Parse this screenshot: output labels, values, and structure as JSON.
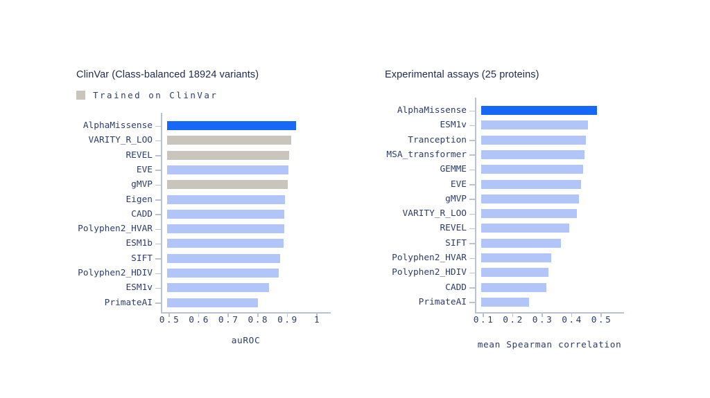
{
  "colors": {
    "highlight": "#1768f5",
    "default": "#b1c5f9",
    "trained": "#c9c5bc",
    "axis": "#b9c1d4",
    "text": "#2d3c6b",
    "title": "#202b52",
    "background": "#ffffff"
  },
  "chart_data": [
    {
      "type": "bar",
      "orientation": "horizontal",
      "title": "ClinVar (Class-balanced 18924 variants)",
      "xlabel": "auROC",
      "xticks": [
        0.5,
        0.6,
        0.7,
        0.8,
        0.9,
        1
      ],
      "xtick_labels": [
        "0.5",
        "0.6",
        "0.7",
        "0.8",
        "0.9",
        "1"
      ],
      "xlim": [
        0.49,
        1.05
      ],
      "grid": false,
      "legend_position": "top-left",
      "legend": [
        {
          "label": "Trained on ClinVar",
          "color_key": "trained"
        }
      ],
      "categories": [
        "AlphaMissense",
        "VARITY_R_LOO",
        "REVEL",
        "EVE",
        "gMVP",
        "Eigen",
        "CADD",
        "Polyphen2_HVAR",
        "ESM1b",
        "SIFT",
        "Polyphen2_HDIV",
        "ESM1v",
        "PrimateAI"
      ],
      "values": [
        0.929,
        0.912,
        0.907,
        0.904,
        0.902,
        0.893,
        0.89,
        0.889,
        0.887,
        0.875,
        0.87,
        0.839,
        0.8
      ],
      "bar_color_keys": [
        "highlight",
        "trained",
        "trained",
        "default",
        "trained",
        "default",
        "default",
        "default",
        "default",
        "default",
        "default",
        "default",
        "default"
      ]
    },
    {
      "type": "bar",
      "orientation": "horizontal",
      "title": "Experimental assays (25 proteins)",
      "xlabel": "mean Spearman correlation",
      "xticks": [
        0.1,
        0.2,
        0.3,
        0.4,
        0.5
      ],
      "xtick_labels": [
        "0.1",
        "0.2",
        "0.3",
        "0.4",
        "0.5"
      ],
      "xlim": [
        0.07,
        0.58
      ],
      "grid": false,
      "legend": [],
      "categories": [
        "AlphaMissense",
        "ESM1v",
        "Tranception",
        "MSA_transformer",
        "GEMME",
        "EVE",
        "gMVP",
        "VARITY_R_LOO",
        "REVEL",
        "SIFT",
        "Polyphen2_HVAR",
        "Polyphen2_HDIV",
        "CADD",
        "PrimateAI"
      ],
      "values": [
        0.487,
        0.456,
        0.448,
        0.444,
        0.439,
        0.432,
        0.425,
        0.417,
        0.392,
        0.363,
        0.33,
        0.32,
        0.314,
        0.256
      ],
      "bar_color_keys": [
        "highlight",
        "default",
        "default",
        "default",
        "default",
        "default",
        "default",
        "default",
        "default",
        "default",
        "default",
        "default",
        "default",
        "default"
      ]
    }
  ]
}
